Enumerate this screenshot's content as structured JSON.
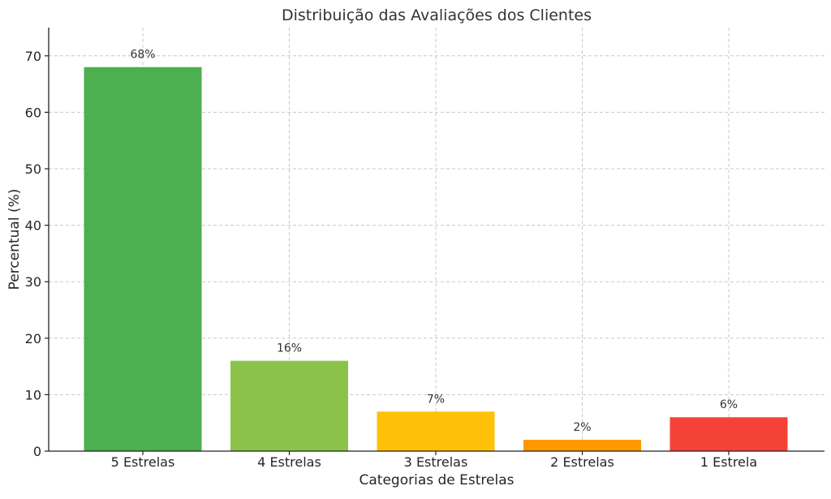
{
  "chart_data": {
    "type": "bar",
    "title": "Distribuição das Avaliações dos Clientes",
    "xlabel": "Categorias de Estrelas",
    "ylabel": "Percentual (%)",
    "categories": [
      "5 Estrelas",
      "4 Estrelas",
      "3 Estrelas",
      "2 Estrelas",
      "1 Estrela"
    ],
    "values": [
      68,
      16,
      7,
      2,
      6
    ],
    "data_labels": [
      "68%",
      "16%",
      "7%",
      "2%",
      "6%"
    ],
    "colors": [
      "#4caf50",
      "#8bc34a",
      "#ffc107",
      "#ff9800",
      "#f44336"
    ],
    "ylim": [
      0,
      75
    ],
    "yticks": [
      0,
      10,
      20,
      30,
      40,
      50,
      60,
      70
    ],
    "grid": true,
    "legend": "none"
  }
}
